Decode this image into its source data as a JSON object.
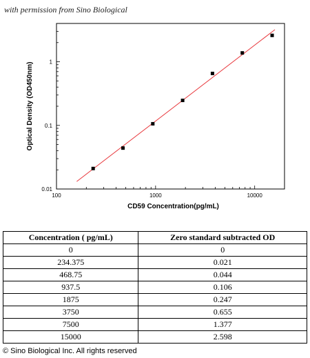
{
  "header": {
    "permission_note": "with permission from Sino Biological"
  },
  "chart_data": {
    "type": "scatter",
    "title": "",
    "xlabel": "CD59  Concentration(pg/mL)",
    "ylabel": "Optical Density (OD450nm)",
    "xscale": "log",
    "yscale": "log",
    "xlim": [
      100,
      20000
    ],
    "ylim": [
      0.01,
      4
    ],
    "x_ticks": [
      {
        "value": 100,
        "label": "100"
      },
      {
        "value": 1000,
        "label": "1000"
      },
      {
        "value": 10000,
        "label": "10000"
      }
    ],
    "y_ticks": [
      {
        "value": 0.01,
        "label": "0.01"
      },
      {
        "value": 0.1,
        "label": "0.1"
      },
      {
        "value": 1,
        "label": "1"
      }
    ],
    "grid": false,
    "series": [
      {
        "marker": "square",
        "color": "#000000",
        "points": [
          {
            "x": 234.375,
            "y": 0.021
          },
          {
            "x": 468.75,
            "y": 0.044
          },
          {
            "x": 937.5,
            "y": 0.106
          },
          {
            "x": 1875,
            "y": 0.247
          },
          {
            "x": 3750,
            "y": 0.655
          },
          {
            "x": 7500,
            "y": 1.377
          },
          {
            "x": 15000,
            "y": 2.598
          }
        ]
      }
    ],
    "fit_line": {
      "color": "#e8383d",
      "x_start": 160,
      "x_end": 16000
    }
  },
  "table": {
    "headers": [
      "Concentration ( pg/mL)",
      "Zero standard subtracted OD"
    ],
    "rows": [
      [
        "0",
        "0"
      ],
      [
        "234.375",
        "0.021"
      ],
      [
        "468.75",
        "0.044"
      ],
      [
        "937.5",
        "0.106"
      ],
      [
        "1875",
        "0.247"
      ],
      [
        "3750",
        "0.655"
      ],
      [
        "7500",
        "1.377"
      ],
      [
        "15000",
        "2.598"
      ]
    ]
  },
  "footer": {
    "copyright": "© Sino Biological Inc. All rights reserved"
  }
}
